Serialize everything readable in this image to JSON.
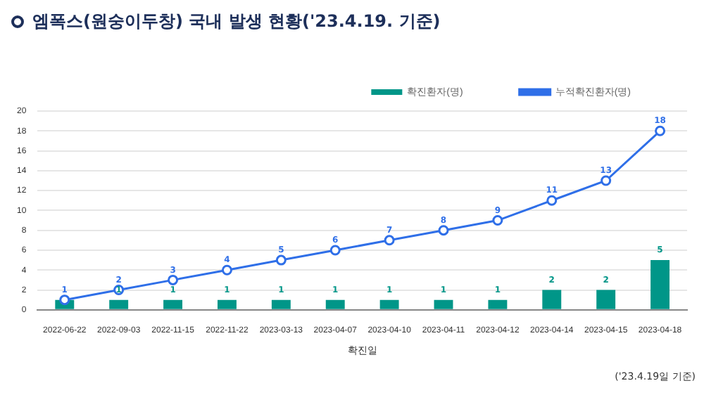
{
  "chart_data": {
    "type": "bar",
    "title": "엠폭스(원숭이두창) 국내 발생 현황('23.4.19. 기준)",
    "xlabel": "확진일",
    "categories": [
      "2022-06-22",
      "2022-09-03",
      "2022-11-15",
      "2022-11-22",
      "2023-03-13",
      "2023-04-07",
      "2023-04-10",
      "2023-04-11",
      "2023-04-12",
      "2023-04-14",
      "2023-04-15",
      "2023-04-18"
    ],
    "series": [
      {
        "name": "확진환자(명)",
        "color": "#009688",
        "values": [
          1,
          1,
          1,
          1,
          1,
          1,
          1,
          1,
          1,
          2,
          2,
          5
        ],
        "value_labels": [
          null,
          "1",
          "1",
          "1",
          "1",
          "1",
          "1",
          "1",
          "1",
          "2",
          "2",
          "5"
        ]
      },
      {
        "name": "누적확진환자(명)",
        "type": "line",
        "color": "#2f6fe8",
        "values": [
          1,
          2,
          3,
          4,
          5,
          6,
          7,
          8,
          9,
          11,
          13,
          18
        ],
        "value_labels": [
          "1",
          "2",
          "3",
          "4",
          "5",
          "6",
          "7",
          "8",
          "9",
          "11",
          "13",
          "18"
        ]
      }
    ],
    "ylim": [
      0,
      20
    ],
    "yticks": [
      0,
      2,
      4,
      6,
      8,
      10,
      12,
      14,
      16,
      18,
      20
    ],
    "grid": "y",
    "legend": "top right",
    "marker": "circle",
    "annotations": [
      "('23.4.19일 기준)"
    ]
  }
}
